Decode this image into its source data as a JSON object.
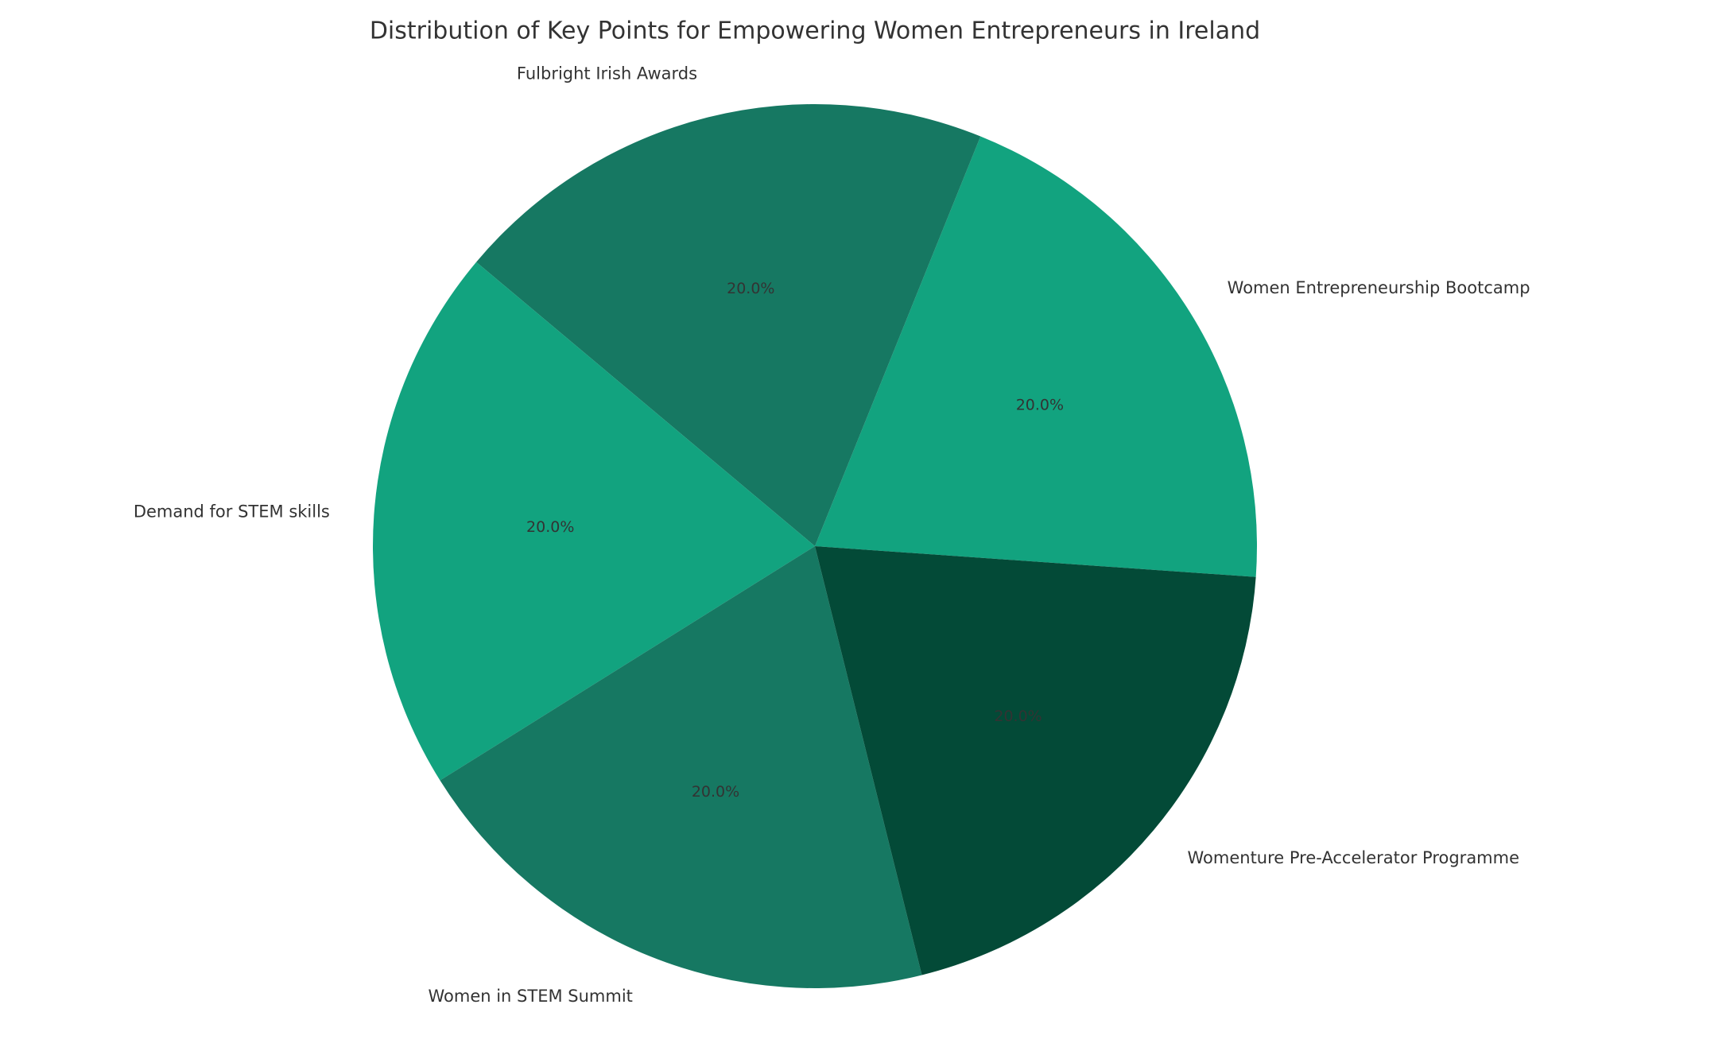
{
  "chart_data": {
    "type": "pie",
    "title": "Distribution of Key Points for Empowering Women Entrepreneurs in Ireland",
    "slices": [
      {
        "label": "Women Entrepreneurship Bootcamp",
        "value": 20.0,
        "pct_label": "20.0%",
        "color": "#12a37f"
      },
      {
        "label": "Fulbright Irish Awards",
        "value": 20.0,
        "pct_label": "20.0%",
        "color": "#167862"
      },
      {
        "label": "Demand for STEM skills",
        "value": 20.0,
        "pct_label": "20.0%",
        "color": "#12a37f"
      },
      {
        "label": "Women in STEM Summit",
        "value": 20.0,
        "pct_label": "20.0%",
        "color": "#167862"
      },
      {
        "label": "Womenture Pre-Accelerator Programme",
        "value": 20.0,
        "pct_label": "20.0%",
        "color": "#034a37"
      }
    ],
    "start_angle_deg": -4,
    "direction": "counterclockwise",
    "legend": "none"
  }
}
